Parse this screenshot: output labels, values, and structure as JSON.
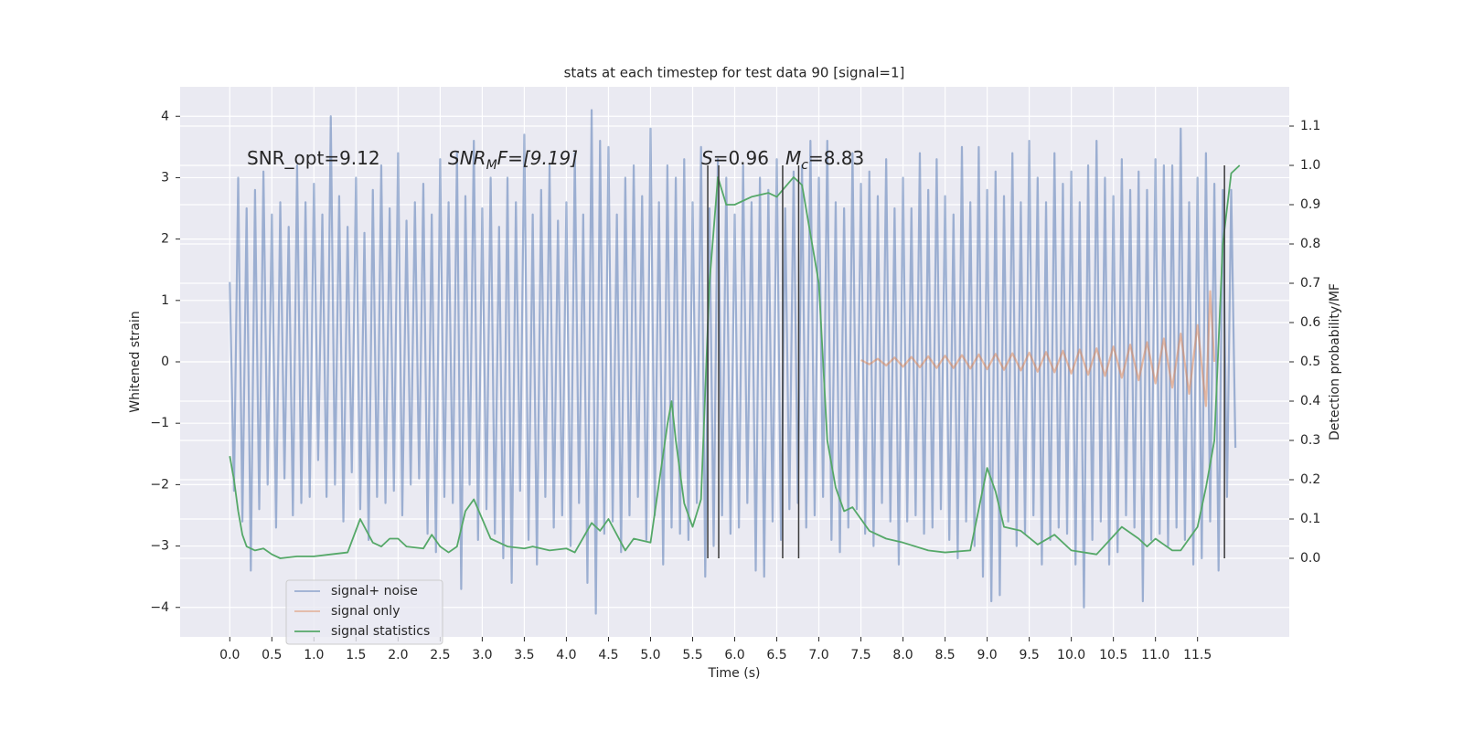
{
  "chart_data": {
    "type": "line",
    "title": "stats at each timestep for test data 90 [signal=1]",
    "xlabel": "Time (s)",
    "ylabel": "Whitened strain",
    "y2label": "Detection probability/MF",
    "xlim": [
      -0.59,
      12.59
    ],
    "ylim": [
      -4.48,
      4.48
    ],
    "y2lim": [
      -0.2,
      1.2
    ],
    "xticks": [
      {
        "value": 0,
        "label": "0.0"
      },
      0.5,
      {
        "value": 1,
        "label": "1.0"
      },
      1.5,
      {
        "value": 2,
        "label": "2.0"
      },
      2.5,
      {
        "value": 3,
        "label": "3.0"
      },
      3.5,
      {
        "value": 4,
        "label": "4.0"
      },
      4.5,
      {
        "value": 5,
        "label": "5.0"
      },
      5.5,
      {
        "value": 6,
        "label": "6.0"
      },
      6.5,
      {
        "value": 7,
        "label": "7.0"
      },
      7.5,
      {
        "value": 8,
        "label": "8.0"
      },
      8.5,
      {
        "value": 9,
        "label": "9.0"
      },
      9.5,
      {
        "value": 10,
        "label": "10.0"
      },
      10.5,
      {
        "value": 11,
        "label": "11.0"
      },
      11.5
    ],
    "yticks": [
      {
        "value": -4,
        "label": "−4"
      },
      {
        "value": -3,
        "label": "−3"
      },
      {
        "value": -2,
        "label": "−2"
      },
      {
        "value": -1,
        "label": "−1"
      },
      0,
      1,
      2,
      3,
      4
    ],
    "y2ticks": [
      {
        "value": 0,
        "label": "0.0"
      },
      0.1,
      0.2,
      0.3,
      0.4,
      0.5,
      0.6,
      0.7,
      0.8,
      0.9,
      {
        "value": 1,
        "label": "1.0"
      },
      1.1
    ],
    "grid": true,
    "legend": "lower left",
    "annotations": [
      {
        "main": "SNR_opt=9.12"
      },
      {
        "main": "SNR",
        "sub": "M",
        "tail": "F=[9.19]"
      },
      {
        "main": "S",
        "tail": "=0.96"
      },
      {
        "main": "M",
        "sub": "c",
        "tail": "=8.83"
      }
    ],
    "vlines": {
      "x": [
        5.68,
        5.81,
        6.57,
        6.76,
        11.82
      ],
      "ymin": -3.2,
      "ymax": 3.2,
      "color": "#3a3a3a"
    },
    "series": [
      {
        "name": "signal+ noise",
        "color": "#4c72b0",
        "x": [
          0,
          0.05,
          0.1,
          0.15,
          0.2,
          0.25,
          0.3,
          0.35,
          0.4,
          0.45,
          0.5,
          0.55,
          0.6,
          0.65,
          0.7,
          0.75,
          0.8,
          0.85,
          0.9,
          0.95,
          1,
          1.05,
          1.1,
          1.15,
          1.2,
          1.25,
          1.3,
          1.35,
          1.4,
          1.45,
          1.5,
          1.55,
          1.6,
          1.65,
          1.7,
          1.75,
          1.8,
          1.85,
          1.9,
          1.95,
          2,
          2.05,
          2.1,
          2.15,
          2.2,
          2.25,
          2.3,
          2.35,
          2.4,
          2.45,
          2.5,
          2.55,
          2.6,
          2.65,
          2.7,
          2.75,
          2.8,
          2.85,
          2.9,
          2.95,
          3,
          3.05,
          3.1,
          3.15,
          3.2,
          3.25,
          3.3,
          3.35,
          3.4,
          3.45,
          3.5,
          3.55,
          3.6,
          3.65,
          3.7,
          3.75,
          3.8,
          3.85,
          3.9,
          3.95,
          4,
          4.05,
          4.1,
          4.15,
          4.2,
          4.25,
          4.3,
          4.35,
          4.4,
          4.45,
          4.5,
          4.55,
          4.6,
          4.65,
          4.7,
          4.75,
          4.8,
          4.85,
          4.9,
          4.95,
          5,
          5.05,
          5.1,
          5.15,
          5.2,
          5.25,
          5.3,
          5.35,
          5.4,
          5.45,
          5.5,
          5.55,
          5.6,
          5.65,
          5.7,
          5.75,
          5.8,
          5.85,
          5.9,
          5.95,
          6,
          6.05,
          6.1,
          6.15,
          6.2,
          6.25,
          6.3,
          6.35,
          6.4,
          6.45,
          6.5,
          6.55,
          6.6,
          6.65,
          6.7,
          6.75,
          6.8,
          6.85,
          6.9,
          6.95,
          7,
          7.05,
          7.1,
          7.15,
          7.2,
          7.25,
          7.3,
          7.35,
          7.4,
          7.45,
          7.5,
          7.55,
          7.6,
          7.65,
          7.7,
          7.75,
          7.8,
          7.85,
          7.9,
          7.95,
          8,
          8.05,
          8.1,
          8.15,
          8.2,
          8.25,
          8.3,
          8.35,
          8.4,
          8.45,
          8.5,
          8.55,
          8.6,
          8.65,
          8.7,
          8.75,
          8.8,
          8.85,
          8.9,
          8.95,
          9,
          9.05,
          9.1,
          9.15,
          9.2,
          9.25,
          9.3,
          9.35,
          9.4,
          9.45,
          9.5,
          9.55,
          9.6,
          9.65,
          9.7,
          9.75,
          9.8,
          9.85,
          9.9,
          9.95,
          10,
          10.05,
          10.1,
          10.15,
          10.2,
          10.25,
          10.3,
          10.35,
          10.4,
          10.45,
          10.5,
          10.55,
          10.6,
          10.65,
          10.7,
          10.75,
          10.8,
          10.85,
          10.9,
          10.95,
          11,
          11.05,
          11.1,
          11.15,
          11.2,
          11.25,
          11.3,
          11.35,
          11.4,
          11.45,
          11.5,
          11.55,
          11.6,
          11.65,
          11.7,
          11.75,
          11.8,
          11.85,
          11.9,
          11.95
        ],
        "values": [
          1.3,
          -2.1,
          3.0,
          -2.6,
          2.5,
          -3.4,
          2.8,
          -2.4,
          3.1,
          -2.0,
          2.4,
          -2.7,
          2.6,
          -1.9,
          2.2,
          -2.5,
          3.2,
          -2.3,
          2.6,
          -2.2,
          2.9,
          -1.6,
          2.4,
          -2.2,
          4.0,
          -2.0,
          2.7,
          -2.6,
          2.2,
          -1.8,
          3.0,
          -2.4,
          2.1,
          -2.9,
          2.8,
          -2.2,
          3.2,
          -2.3,
          2.5,
          -2.1,
          3.4,
          -2.5,
          2.3,
          -2.0,
          2.6,
          -1.9,
          2.9,
          -2.8,
          2.4,
          -3.1,
          3.3,
          -2.2,
          2.6,
          -2.3,
          3.4,
          -3.7,
          2.7,
          -2.0,
          3.6,
          -2.9,
          2.5,
          -2.4,
          3.0,
          -2.8,
          2.2,
          -3.2,
          3.0,
          -3.6,
          2.6,
          -2.1,
          3.7,
          -2.9,
          2.4,
          -3.3,
          2.8,
          -2.2,
          3.2,
          -2.7,
          2.3,
          -2.5,
          2.6,
          -3.0,
          3.4,
          -2.3,
          2.4,
          -3.6,
          4.1,
          -4.1,
          3.6,
          -2.8,
          3.5,
          -2.6,
          2.4,
          -3.1,
          3.0,
          -2.5,
          3.2,
          -2.2,
          2.7,
          -2.9,
          3.8,
          -2.5,
          2.6,
          -3.3,
          3.2,
          -2.7,
          3.0,
          -2.8,
          3.3,
          -2.9,
          2.6,
          -2.3,
          3.5,
          -3.5,
          2.5,
          -3.0,
          3.3,
          -2.5,
          3.0,
          -2.8,
          2.4,
          -2.7,
          3.2,
          -2.3,
          2.6,
          -3.4,
          3.0,
          -3.5,
          2.8,
          -2.6,
          3.3,
          -2.9,
          2.5,
          -2.4,
          3.1,
          -2.3,
          3.2,
          -2.7,
          3.6,
          -2.5,
          3.0,
          -2.2,
          3.6,
          -2.9,
          2.6,
          -3.1,
          2.5,
          -2.7,
          3.4,
          -2.4,
          2.9,
          -2.8,
          3.1,
          -3.0,
          2.7,
          -2.3,
          3.3,
          -2.6,
          2.5,
          -3.3,
          3.0,
          -2.6,
          2.5,
          -2.5,
          3.4,
          -2.8,
          2.8,
          -2.7,
          3.3,
          -2.4,
          2.7,
          -2.9,
          2.4,
          -3.2,
          3.5,
          -2.6,
          2.6,
          -3.0,
          3.5,
          -3.5,
          2.8,
          -3.9,
          3.1,
          -3.8,
          2.7,
          -2.6,
          3.4,
          -3.0,
          2.6,
          -2.8,
          3.6,
          -2.5,
          3.0,
          -3.3,
          2.6,
          -2.9,
          3.4,
          -2.7,
          2.9,
          -2.8,
          3.1,
          -3.3,
          2.6,
          -4.0,
          3.2,
          -2.9,
          3.6,
          -2.6,
          3.0,
          -3.3,
          2.7,
          -3.1,
          3.3,
          -2.5,
          2.8,
          -2.7,
          3.1,
          -3.9,
          2.8,
          -2.9,
          3.3,
          -2.8,
          3.2,
          -3.0,
          3.2,
          -2.7,
          3.8,
          -2.9,
          2.6,
          -3.3,
          3.0,
          -3.2,
          3.4,
          -2.6,
          2.9,
          -3.4,
          2.8,
          -2.2,
          2.8,
          -1.4
        ]
      },
      {
        "name": "signal only",
        "color": "#dd8452",
        "x": [
          7.5,
          7.6,
          7.7,
          7.8,
          7.9,
          8.0,
          8.1,
          8.2,
          8.3,
          8.4,
          8.5,
          8.6,
          8.7,
          8.8,
          8.9,
          9.0,
          9.1,
          9.2,
          9.3,
          9.4,
          9.5,
          9.6,
          9.7,
          9.8,
          9.9,
          10.0,
          10.1,
          10.2,
          10.3,
          10.4,
          10.5,
          10.6,
          10.7,
          10.8,
          10.9,
          11.0,
          11.1,
          11.2,
          11.3,
          11.4,
          11.5,
          11.6,
          11.65,
          11.7
        ],
        "values": [
          0.03,
          -0.04,
          0.05,
          -0.06,
          0.07,
          -0.08,
          0.08,
          -0.09,
          0.09,
          -0.1,
          0.1,
          -0.1,
          0.11,
          -0.11,
          0.12,
          -0.12,
          0.13,
          -0.13,
          0.14,
          -0.14,
          0.15,
          -0.16,
          0.16,
          -0.17,
          0.18,
          -0.19,
          0.2,
          -0.21,
          0.22,
          -0.23,
          0.25,
          -0.26,
          0.28,
          -0.3,
          0.32,
          -0.35,
          0.38,
          -0.42,
          0.46,
          -0.52,
          0.6,
          -0.72,
          1.15,
          0.0
        ]
      },
      {
        "name": "signal statistics",
        "color": "#55a868",
        "axis": "y2",
        "x": [
          0.0,
          0.05,
          0.1,
          0.15,
          0.2,
          0.3,
          0.4,
          0.5,
          0.6,
          0.8,
          1.0,
          1.2,
          1.4,
          1.55,
          1.7,
          1.8,
          1.9,
          2.0,
          2.1,
          2.3,
          2.4,
          2.5,
          2.6,
          2.7,
          2.8,
          2.9,
          3.0,
          3.1,
          3.3,
          3.5,
          3.6,
          3.8,
          4.0,
          4.1,
          4.3,
          4.4,
          4.5,
          4.6,
          4.7,
          4.8,
          5.0,
          5.2,
          5.25,
          5.3,
          5.4,
          5.5,
          5.6,
          5.7,
          5.8,
          5.9,
          6.0,
          6.2,
          6.4,
          6.5,
          6.7,
          6.8,
          7.0,
          7.1,
          7.2,
          7.3,
          7.4,
          7.5,
          7.6,
          7.8,
          8.0,
          8.3,
          8.5,
          8.8,
          9.0,
          9.1,
          9.2,
          9.4,
          9.6,
          9.8,
          10.0,
          10.3,
          10.6,
          10.8,
          10.9,
          11.0,
          11.2,
          11.3,
          11.5,
          11.6,
          11.7,
          11.8,
          11.9,
          12.0
        ],
        "values": [
          0.26,
          0.2,
          0.12,
          0.06,
          0.03,
          0.02,
          0.025,
          0.01,
          0.0,
          0.005,
          0.005,
          0.01,
          0.015,
          0.1,
          0.04,
          0.03,
          0.05,
          0.05,
          0.03,
          0.025,
          0.06,
          0.03,
          0.015,
          0.03,
          0.12,
          0.15,
          0.1,
          0.05,
          0.03,
          0.025,
          0.03,
          0.02,
          0.025,
          0.015,
          0.09,
          0.07,
          0.1,
          0.06,
          0.02,
          0.05,
          0.04,
          0.34,
          0.4,
          0.3,
          0.14,
          0.08,
          0.15,
          0.7,
          0.97,
          0.9,
          0.9,
          0.92,
          0.93,
          0.92,
          0.97,
          0.95,
          0.7,
          0.3,
          0.18,
          0.12,
          0.13,
          0.1,
          0.07,
          0.05,
          0.04,
          0.02,
          0.015,
          0.02,
          0.23,
          0.17,
          0.08,
          0.07,
          0.035,
          0.06,
          0.02,
          0.01,
          0.08,
          0.05,
          0.03,
          0.05,
          0.02,
          0.02,
          0.08,
          0.18,
          0.3,
          0.8,
          0.98,
          1.0
        ]
      }
    ]
  }
}
